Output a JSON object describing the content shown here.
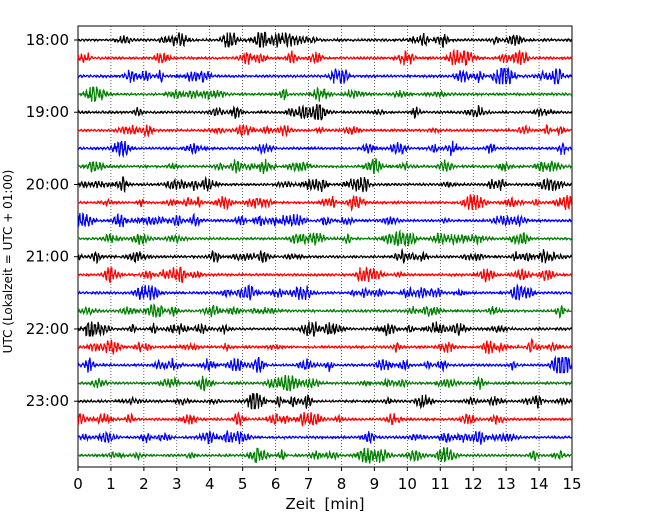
{
  "chart_data": {
    "type": "line",
    "subtype": "helicorder",
    "title": "",
    "xlabel": "Zeit  [min]",
    "ylabel": "UTC (Lokalzeit = UTC + 01:00)",
    "xlim": [
      0,
      15
    ],
    "xticks": [
      0,
      1,
      2,
      3,
      4,
      5,
      6,
      7,
      8,
      9,
      10,
      11,
      12,
      13,
      14,
      15
    ],
    "x_grid": true,
    "y_tick_labels": [
      "18:00",
      "19:00",
      "20:00",
      "21:00",
      "22:00",
      "23:00"
    ],
    "y_tick_rows": [
      0,
      4,
      8,
      12,
      16,
      20
    ],
    "trace_minutes_per_line": 15,
    "line_count": 24,
    "line_colors": [
      "#000000",
      "#ff0000",
      "#0000ff",
      "#008000"
    ]
  }
}
